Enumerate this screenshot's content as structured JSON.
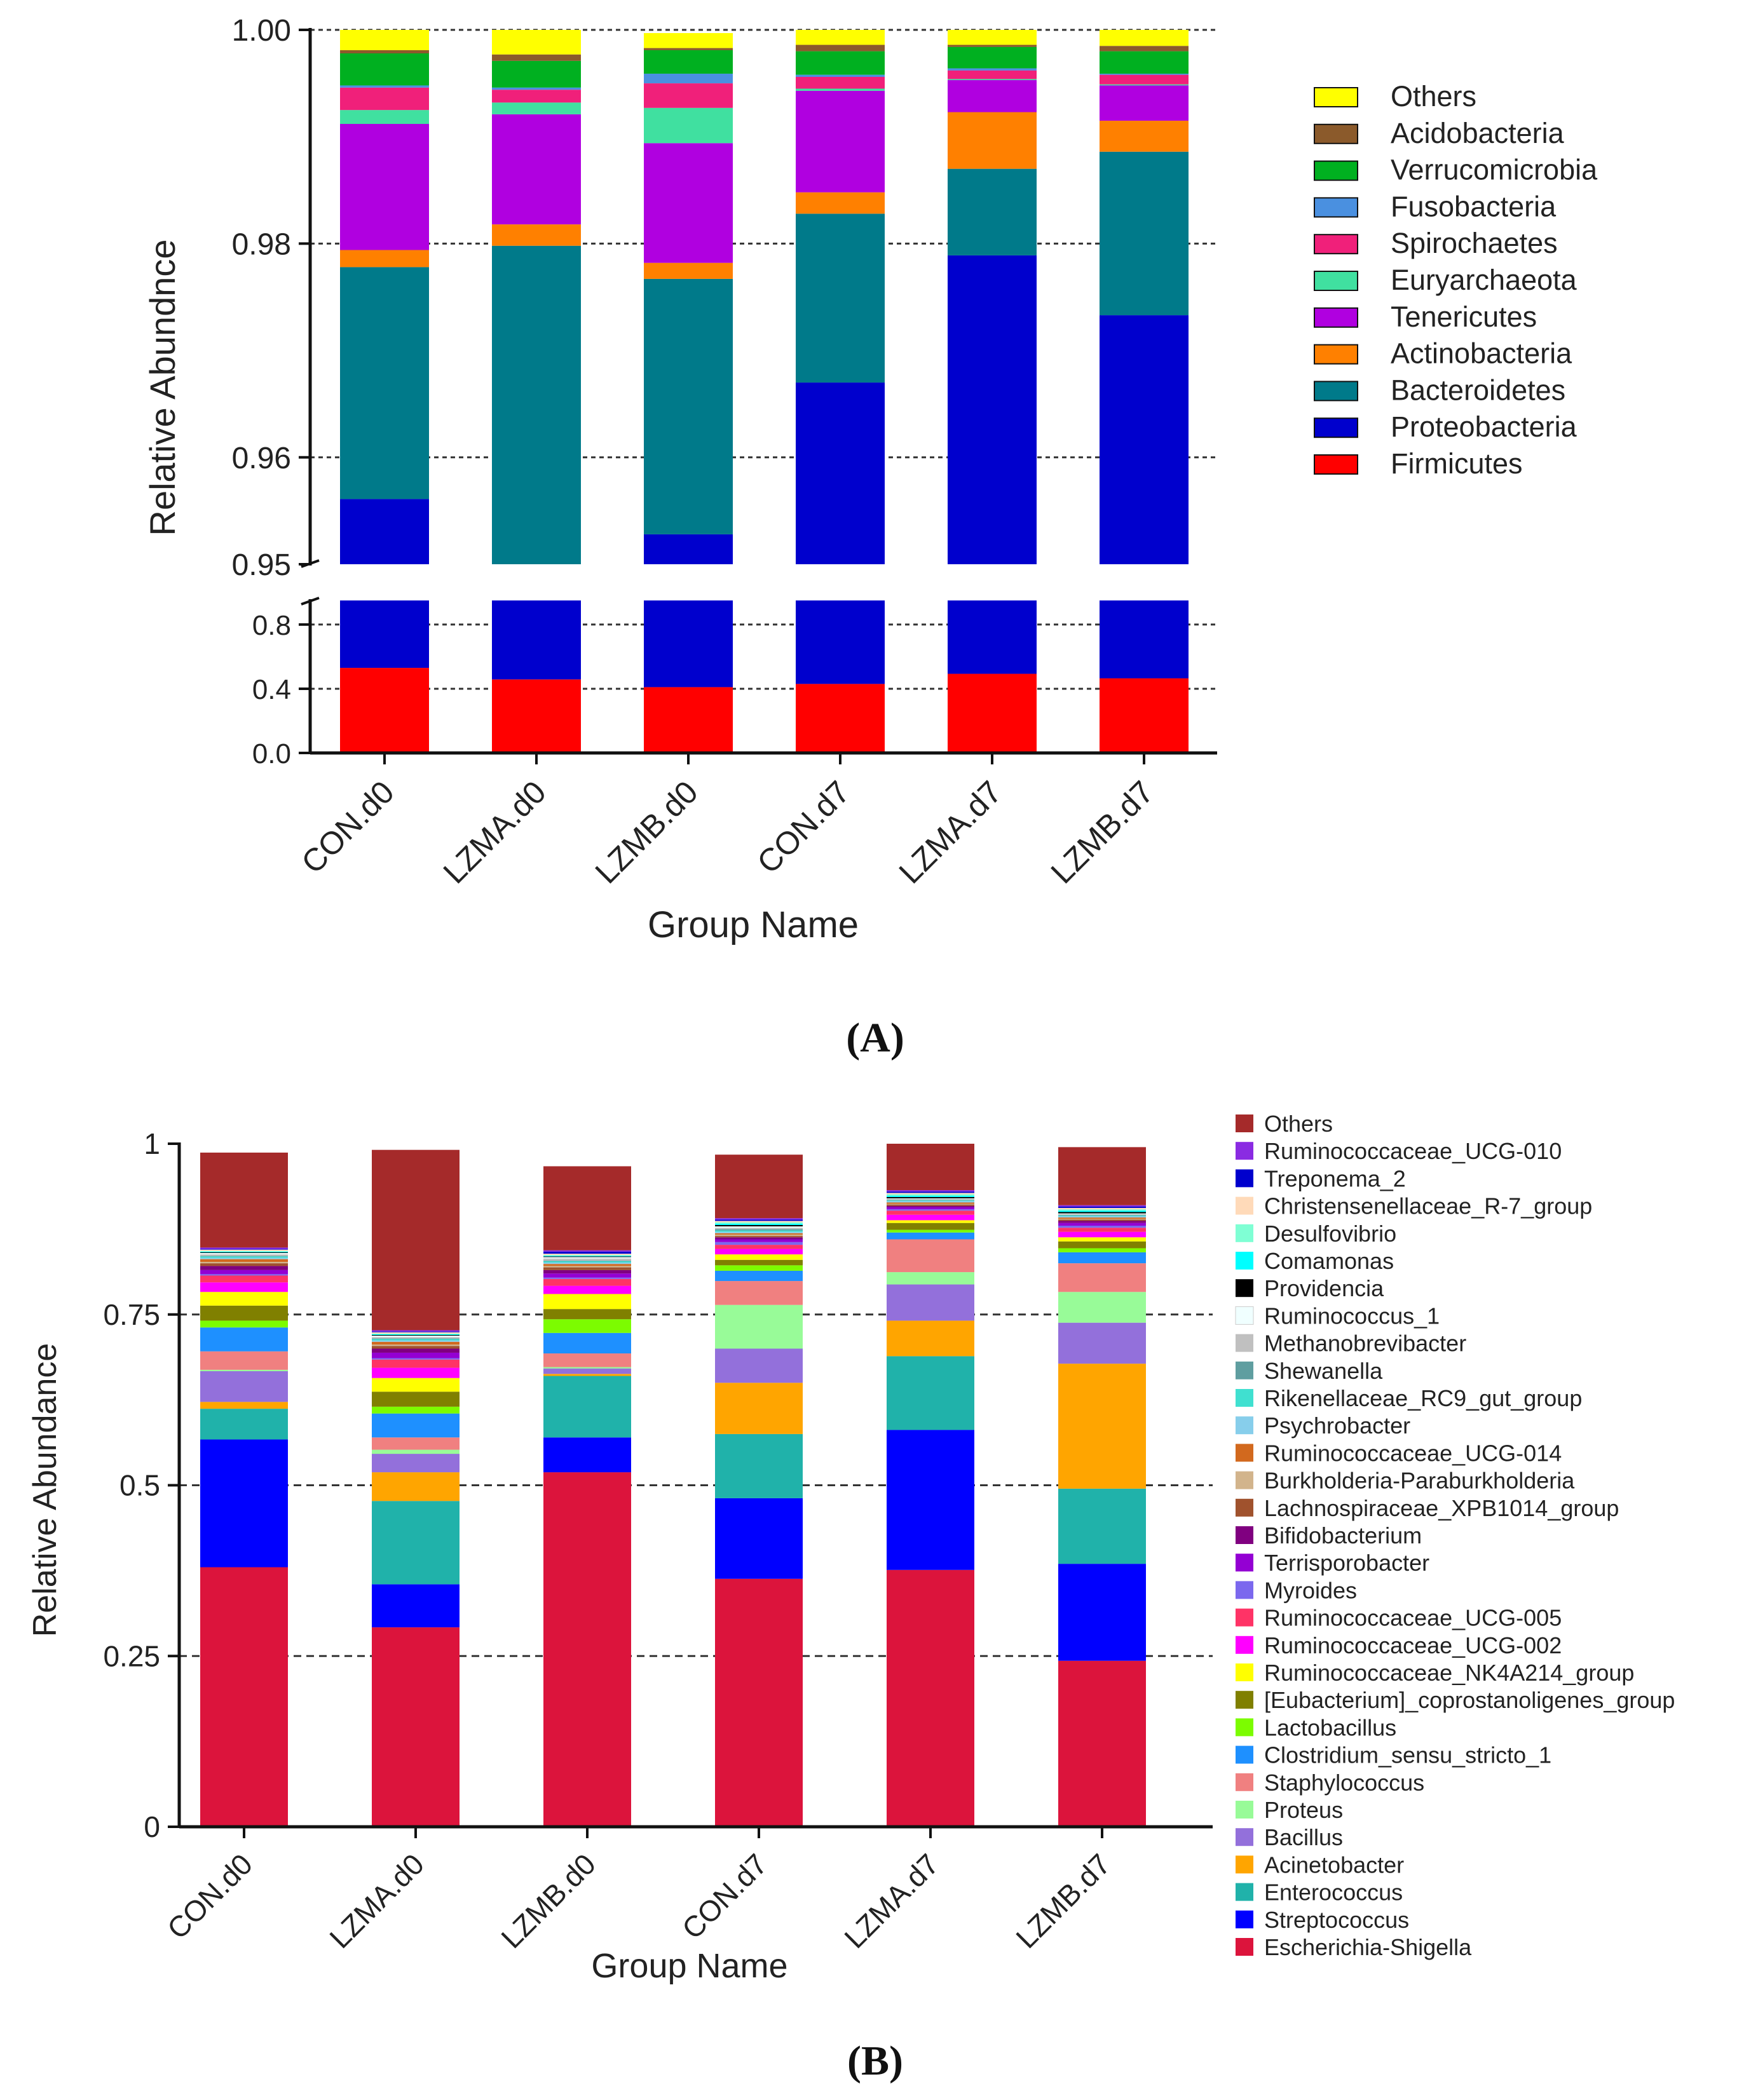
{
  "chart_data": [
    {
      "panel": "A",
      "panel_label": "(A)",
      "type": "bar",
      "stacked": true,
      "broken_axis": true,
      "xlabel": "Group Name",
      "ylabel": "Relative Abundnce",
      "categories": [
        "CON.d0",
        "LZMA.d0",
        "LZMB.d0",
        "CON.d7",
        "LZMA.d7",
        "LZMB.d7"
      ],
      "y_upper_range": [
        0.95,
        1.0
      ],
      "y_upper_ticks": [
        "0.95",
        "0.96",
        "0.98",
        "1.00"
      ],
      "y_lower_range": [
        0.0,
        0.95
      ],
      "y_lower_ticks": [
        "0.0",
        "0.4",
        "0.8"
      ],
      "legend_position": "right",
      "series": [
        {
          "name": "Firmicutes",
          "color": "#ff0000",
          "values": [
            0.53,
            0.458,
            0.41,
            0.43,
            0.493,
            0.465
          ]
        },
        {
          "name": "Proteobacteria",
          "color": "#0000cd",
          "values": [
            0.4261,
            0.492,
            0.5428,
            0.537,
            0.4859,
            0.5083
          ]
        },
        {
          "name": "Bacteroidetes",
          "color": "#007a8a",
          "values": [
            0.0217,
            0.0298,
            0.0239,
            0.0158,
            0.0081,
            0.0153
          ]
        },
        {
          "name": "Actinobacteria",
          "color": "#ff8000",
          "values": [
            0.0016,
            0.002,
            0.0015,
            0.002,
            0.0053,
            0.0029
          ]
        },
        {
          "name": "Tenericutes",
          "color": "#b000e0",
          "values": [
            0.0118,
            0.0103,
            0.0112,
            0.0095,
            0.003,
            0.0033
          ]
        },
        {
          "name": "Euryarchaeota",
          "color": "#40e0a0",
          "values": [
            0.0013,
            0.0011,
            0.0033,
            0.0002,
            0.0001,
            0.0001
          ]
        },
        {
          "name": "Spirochaetes",
          "color": "#f0207a",
          "values": [
            0.0021,
            0.0012,
            0.0023,
            0.0011,
            0.0008,
            0.0009
          ]
        },
        {
          "name": "Fusobacteria",
          "color": "#4a90e0",
          "values": [
            0.0002,
            0.0002,
            0.0009,
            0.0002,
            0.0002,
            0.0001
          ]
        },
        {
          "name": "Verrucomicrobia",
          "color": "#00b020",
          "values": [
            0.003,
            0.0025,
            0.0022,
            0.0022,
            0.002,
            0.0021
          ]
        },
        {
          "name": "Acidobacteria",
          "color": "#8b5a2b",
          "values": [
            0.0003,
            0.0006,
            0.0002,
            0.0006,
            0.0002,
            0.0005
          ]
        },
        {
          "name": "Others",
          "color": "#ffff00",
          "values": [
            0.0024,
            0.0027,
            0.0014,
            0.0019,
            0.0018,
            0.0023
          ]
        }
      ]
    },
    {
      "panel": "B",
      "panel_label": "(B)",
      "type": "bar",
      "stacked": true,
      "xlabel": "Group Name",
      "ylabel": "Relative Abundance",
      "categories": [
        "CON.d0",
        "LZMA.d0",
        "LZMB.d0",
        "CON.d7",
        "LZMA.d7",
        "LZMB.d7"
      ],
      "ylim": [
        0,
        1
      ],
      "y_ticks": [
        "0",
        "0.25",
        "0.5",
        "0.75",
        "1"
      ],
      "legend_position": "right",
      "series": [
        {
          "name": "Escherichia-Shigella",
          "color": "#dc143c",
          "values": [
            0.38,
            0.292,
            0.519,
            0.363,
            0.376,
            0.243
          ]
        },
        {
          "name": "Streptococcus",
          "color": "#0000ff",
          "values": [
            0.187,
            0.063,
            0.051,
            0.118,
            0.205,
            0.142
          ]
        },
        {
          "name": "Enterococcus",
          "color": "#20b2aa",
          "values": [
            0.045,
            0.122,
            0.09,
            0.094,
            0.108,
            0.11
          ]
        },
        {
          "name": "Acinetobacter",
          "color": "#ffa500",
          "values": [
            0.01,
            0.042,
            0.003,
            0.075,
            0.052,
            0.183
          ]
        },
        {
          "name": "Bacillus",
          "color": "#9370db",
          "values": [
            0.045,
            0.027,
            0.008,
            0.05,
            0.053,
            0.06
          ]
        },
        {
          "name": "Proteus",
          "color": "#98fb98",
          "values": [
            0.002,
            0.006,
            0.002,
            0.064,
            0.018,
            0.045
          ]
        },
        {
          "name": "Staphylococcus",
          "color": "#f08080",
          "values": [
            0.027,
            0.018,
            0.02,
            0.035,
            0.048,
            0.042
          ]
        },
        {
          "name": "Clostridium_sensu_stricto_1",
          "color": "#1e90ff",
          "values": [
            0.035,
            0.035,
            0.03,
            0.015,
            0.01,
            0.016
          ]
        },
        {
          "name": "Lactobacillus",
          "color": "#7cfc00",
          "values": [
            0.01,
            0.01,
            0.02,
            0.008,
            0.004,
            0.006
          ]
        },
        {
          "name": "[Eubacterium]_coprostanoligenes_group",
          "color": "#808000",
          "values": [
            0.022,
            0.022,
            0.015,
            0.008,
            0.01,
            0.01
          ]
        },
        {
          "name": "Ruminococcaceae_NK4A214_group",
          "color": "#ffff00",
          "values": [
            0.02,
            0.02,
            0.022,
            0.008,
            0.004,
            0.006
          ]
        },
        {
          "name": "Ruminococcaceae_UCG-002",
          "color": "#ff00ff",
          "values": [
            0.014,
            0.015,
            0.012,
            0.008,
            0.008,
            0.008
          ]
        },
        {
          "name": "Ruminococcaceae_UCG-005",
          "color": "#ff3366",
          "values": [
            0.01,
            0.012,
            0.01,
            0.006,
            0.006,
            0.006
          ]
        },
        {
          "name": "Myroides",
          "color": "#7b68ee",
          "values": [
            0.002,
            0.002,
            0.002,
            0.004,
            0.002,
            0.003
          ]
        },
        {
          "name": "Terrisporobacter",
          "color": "#9400d3",
          "values": [
            0.006,
            0.008,
            0.006,
            0.004,
            0.003,
            0.004
          ]
        },
        {
          "name": "Bifidobacterium",
          "color": "#800080",
          "values": [
            0.006,
            0.006,
            0.005,
            0.003,
            0.002,
            0.003
          ]
        },
        {
          "name": "Lachnospiraceae_XPB1014_group",
          "color": "#a0522d",
          "values": [
            0.004,
            0.004,
            0.004,
            0.002,
            0.002,
            0.002
          ]
        },
        {
          "name": "Burkholderia-Paraburkholderia",
          "color": "#d2b48c",
          "values": [
            0.002,
            0.002,
            0.002,
            0.002,
            0.001,
            0.001
          ]
        },
        {
          "name": "Ruminococcaceae_UCG-014",
          "color": "#d2691e",
          "values": [
            0.004,
            0.004,
            0.003,
            0.002,
            0.002,
            0.002
          ]
        },
        {
          "name": "Psychrobacter",
          "color": "#87ceeb",
          "values": [
            0.002,
            0.002,
            0.002,
            0.002,
            0.002,
            0.002
          ]
        },
        {
          "name": "Rikenellaceae_RC9_gut_group",
          "color": "#40e0d0",
          "values": [
            0.002,
            0.002,
            0.002,
            0.002,
            0.001,
            0.001
          ]
        },
        {
          "name": "Shewanella",
          "color": "#5f9ea0",
          "values": [
            0.001,
            0.001,
            0.001,
            0.002,
            0.001,
            0.001
          ]
        },
        {
          "name": "Methanobrevibacter",
          "color": "#c0c0c0",
          "values": [
            0.002,
            0.002,
            0.003,
            0.002,
            0.001,
            0.001
          ]
        },
        {
          "name": "Ruminococcus_1",
          "color": "#f0ffff",
          "values": [
            0.002,
            0.002,
            0.002,
            0.002,
            0.001,
            0.001
          ]
        },
        {
          "name": "Providencia",
          "color": "#000000",
          "values": [
            0.001,
            0.001,
            0.001,
            0.002,
            0.002,
            0.002
          ]
        },
        {
          "name": "Comamonas",
          "color": "#00ffff",
          "values": [
            0.001,
            0.001,
            0.001,
            0.002,
            0.002,
            0.002
          ]
        },
        {
          "name": "Desulfovibrio",
          "color": "#7fffd4",
          "values": [
            0.001,
            0.001,
            0.001,
            0.002,
            0.002,
            0.002
          ]
        },
        {
          "name": "Christensenellaceae_R-7_group",
          "color": "#ffdab9",
          "values": [
            0.002,
            0.002,
            0.002,
            0.002,
            0.002,
            0.002
          ]
        },
        {
          "name": "Treponema_2",
          "color": "#0000cd",
          "values": [
            0.001,
            0.001,
            0.003,
            0.002,
            0.002,
            0.002
          ]
        },
        {
          "name": "Ruminococcaceae_UCG-010",
          "color": "#8a2be2",
          "values": [
            0.002,
            0.002,
            0.002,
            0.002,
            0.002,
            0.002
          ]
        },
        {
          "name": "Others",
          "color": "#a52a2a",
          "values": [
            0.139,
            0.264,
            0.123,
            0.093,
            0.07,
            0.085
          ]
        }
      ]
    }
  ]
}
